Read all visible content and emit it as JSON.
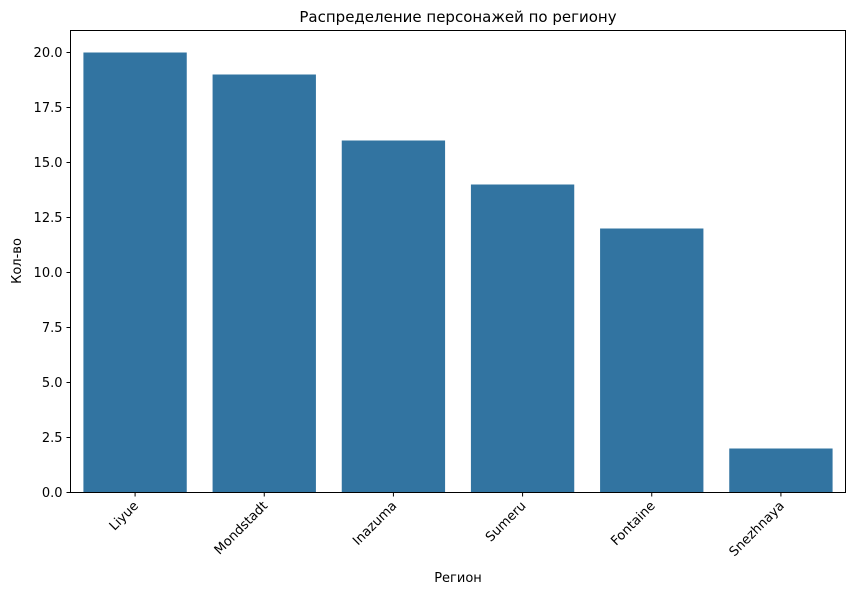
{
  "chart_data": {
    "type": "bar",
    "title": "Распределение персонажей по региону",
    "xlabel": "Регион",
    "ylabel": "Кол-во",
    "categories": [
      "Liyue",
      "Mondstadt",
      "Inazuma",
      "Sumeru",
      "Fontaine",
      "Snezhnaya"
    ],
    "values": [
      20,
      19,
      16,
      14,
      12,
      2
    ],
    "ylim": [
      0,
      21
    ],
    "yticks": [
      0,
      2.5,
      5,
      7.5,
      10,
      12.5,
      15,
      17.5,
      20
    ],
    "ytick_labels": [
      "0.0",
      "2.5",
      "5.0",
      "7.5",
      "10.0",
      "12.5",
      "15.0",
      "17.5",
      "20.0"
    ],
    "bar_color": "#3274a1",
    "grid": false,
    "legend": "none"
  }
}
